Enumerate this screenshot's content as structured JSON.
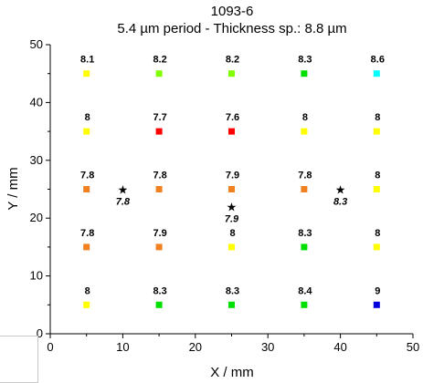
{
  "chart_data": {
    "type": "scatter",
    "title": "1093-6",
    "subtitle": "5.4 µm period - Thickness sp.: 8.8 µm",
    "xlabel": "X / mm",
    "ylabel": "Y / mm",
    "xlim": [
      0,
      50
    ],
    "ylim": [
      0,
      50
    ],
    "xticks": [
      0,
      10,
      20,
      30,
      40,
      50
    ],
    "yticks": [
      0,
      10,
      20,
      30,
      40,
      50
    ],
    "grid": false,
    "points": [
      {
        "x": 5,
        "y": 45,
        "label": "8.1",
        "color": "#ffff00"
      },
      {
        "x": 15,
        "y": 45,
        "label": "8.2",
        "color": "#80ff00"
      },
      {
        "x": 25,
        "y": 45,
        "label": "8.2",
        "color": "#80ff00"
      },
      {
        "x": 35,
        "y": 45,
        "label": "8.3",
        "color": "#00e000"
      },
      {
        "x": 45,
        "y": 45,
        "label": "8.6",
        "color": "#00ffff"
      },
      {
        "x": 5,
        "y": 35,
        "label": "8",
        "color": "#ffff00"
      },
      {
        "x": 15,
        "y": 35,
        "label": "7.7",
        "color": "#ff0000"
      },
      {
        "x": 25,
        "y": 35,
        "label": "7.6",
        "color": "#ff0000"
      },
      {
        "x": 35,
        "y": 35,
        "label": "8",
        "color": "#ffff00"
      },
      {
        "x": 45,
        "y": 35,
        "label": "8",
        "color": "#ffff00"
      },
      {
        "x": 5,
        "y": 25,
        "label": "7.8",
        "color": "#f08020"
      },
      {
        "x": 15,
        "y": 25,
        "label": "7.8",
        "color": "#f08020"
      },
      {
        "x": 25,
        "y": 25,
        "label": "7.9",
        "color": "#f08020"
      },
      {
        "x": 35,
        "y": 25,
        "label": "7.8",
        "color": "#f08020"
      },
      {
        "x": 45,
        "y": 25,
        "label": "8",
        "color": "#ffff00"
      },
      {
        "x": 5,
        "y": 15,
        "label": "7.8",
        "color": "#f08020"
      },
      {
        "x": 15,
        "y": 15,
        "label": "7.9",
        "color": "#f08020"
      },
      {
        "x": 25,
        "y": 15,
        "label": "8",
        "color": "#ffff00"
      },
      {
        "x": 35,
        "y": 15,
        "label": "8.3",
        "color": "#00e000"
      },
      {
        "x": 45,
        "y": 15,
        "label": "8",
        "color": "#ffff00"
      },
      {
        "x": 5,
        "y": 5,
        "label": "8",
        "color": "#ffff00"
      },
      {
        "x": 15,
        "y": 5,
        "label": "8.3",
        "color": "#00e000"
      },
      {
        "x": 25,
        "y": 5,
        "label": "8.3",
        "color": "#00e000"
      },
      {
        "x": 35,
        "y": 5,
        "label": "8.4",
        "color": "#00e000"
      },
      {
        "x": 45,
        "y": 5,
        "label": "9",
        "color": "#0000dd"
      }
    ],
    "star_points": [
      {
        "x": 10,
        "y": 25,
        "label": "7.8"
      },
      {
        "x": 25,
        "y": 22,
        "label": "7.9"
      },
      {
        "x": 40,
        "y": 25,
        "label": "8.3"
      }
    ]
  }
}
